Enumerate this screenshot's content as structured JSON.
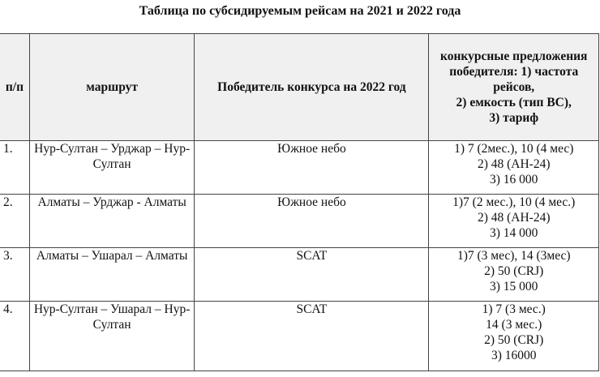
{
  "title": "Таблица по субсидируемым рейсам на 2021 и 2022 года",
  "headers": [
    "п/п",
    "маршрут",
    "Победитель конкурса на 2022 год",
    [
      "конкурсные предложения",
      "победителя: 1) частота",
      "рейсов,",
      "2) емкость (тип ВС),",
      "3) тариф"
    ]
  ],
  "rows": [
    {
      "num": "1.",
      "route": "Нур-Султан – Урджар – Нур-Султан",
      "winner": "Южное небо",
      "offer": [
        "1) 7 (2мес.), 10 (4 мес)",
        "2) 48  (АН-24)",
        "3) 16 000"
      ]
    },
    {
      "num": "2.",
      "route": "Алматы – Урджар - Алматы",
      "winner": "Южное небо",
      "offer": [
        "1)7 (2 мес.), 10 (4 мес.)",
        "2) 48 (АН-24)",
        "3) 14 000"
      ]
    },
    {
      "num": "3.",
      "route": "Алматы – Ушарал – Алматы",
      "winner": "SCAT",
      "offer": [
        "1)7 (3 мес), 14 (3мес)",
        "2) 50 (CRJ)",
        "3) 15 000"
      ]
    },
    {
      "num": "4.",
      "route": "Нур-Султан – Ушарал – Нур-Султан",
      "winner": "SCAT",
      "offer": [
        "1) 7 (3 мес.)",
        "14 (3 мес.)",
        "2) 50 (CRJ)",
        "3) 16000"
      ]
    }
  ]
}
